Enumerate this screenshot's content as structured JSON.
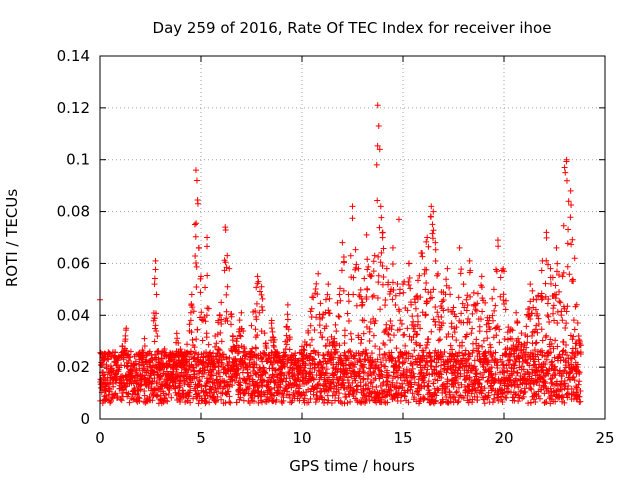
{
  "chart_data": {
    "type": "scatter",
    "title": "Day 259 of 2016, Rate Of TEC Index for receiver ihoe",
    "xlabel": "GPS time / hours",
    "ylabel": "ROTI / TECUs",
    "xlim": [
      0,
      25
    ],
    "ylim": [
      0,
      0.14
    ],
    "grid": true,
    "marker": "+",
    "x_ticks": [
      0,
      5,
      10,
      15,
      20,
      25
    ],
    "x_tick_labels": [
      "0",
      "5",
      "10",
      "15",
      "20",
      "25"
    ],
    "y_ticks": [
      0,
      0.02,
      0.04,
      0.06,
      0.08,
      0.1,
      0.12,
      0.14
    ],
    "y_tick_labels": [
      "0",
      "0.02",
      "0.04",
      "0.06",
      "0.08",
      "0.1",
      "0.12",
      "0.14"
    ],
    "series_color": "#ff0000",
    "series": [
      {
        "name": "ROTI",
        "x": [
          0.0,
          0.05,
          0.1,
          0.2,
          0.3,
          0.5,
          0.7,
          1.0,
          1.1,
          1.3,
          1.5,
          1.7,
          2.0,
          2.2,
          2.5,
          2.7,
          2.75,
          2.8,
          2.9,
          3.2,
          3.5,
          3.8,
          4.2,
          4.5,
          4.7,
          4.75,
          4.8,
          4.85,
          4.9,
          5.0,
          5.1,
          5.3,
          5.5,
          5.7,
          6.0,
          6.2,
          6.3,
          6.4,
          6.6,
          7.0,
          7.3,
          7.5,
          7.8,
          8.0,
          8.2,
          8.5,
          8.8,
          9.0,
          9.3,
          9.6,
          10.0,
          10.3,
          10.5,
          10.8,
          11.0,
          11.3,
          11.6,
          12.0,
          12.3,
          12.5,
          12.8,
          13.0,
          13.2,
          13.4,
          13.6,
          13.7,
          13.75,
          13.8,
          13.85,
          13.9,
          14.0,
          14.2,
          14.5,
          14.8,
          15.0,
          15.3,
          15.6,
          15.9,
          16.2,
          16.4,
          16.5,
          16.6,
          16.9,
          17.2,
          17.5,
          17.8,
          18.0,
          18.3,
          18.6,
          18.9,
          19.2,
          19.5,
          19.7,
          20.0,
          20.3,
          20.6,
          21.0,
          21.3,
          21.6,
          21.9,
          22.1,
          22.3,
          22.6,
          22.9,
          23.0,
          23.1,
          23.2,
          23.3,
          23.5,
          23.7
        ],
        "y": [
          0.046,
          0.012,
          0.018,
          0.025,
          0.009,
          0.016,
          0.022,
          0.014,
          0.028,
          0.035,
          0.019,
          0.011,
          0.024,
          0.031,
          0.017,
          0.052,
          0.061,
          0.048,
          0.021,
          0.027,
          0.015,
          0.033,
          0.022,
          0.041,
          0.075,
          0.096,
          0.092,
          0.083,
          0.066,
          0.055,
          0.038,
          0.07,
          0.024,
          0.032,
          0.045,
          0.074,
          0.063,
          0.058,
          0.028,
          0.041,
          0.019,
          0.036,
          0.055,
          0.051,
          0.029,
          0.038,
          0.022,
          0.018,
          0.044,
          0.013,
          0.028,
          0.034,
          0.047,
          0.056,
          0.039,
          0.052,
          0.031,
          0.068,
          0.048,
          0.082,
          0.058,
          0.045,
          0.071,
          0.055,
          0.063,
          0.098,
          0.121,
          0.113,
          0.104,
          0.082,
          0.072,
          0.058,
          0.066,
          0.077,
          0.052,
          0.06,
          0.045,
          0.064,
          0.07,
          0.082,
          0.08,
          0.068,
          0.049,
          0.058,
          0.043,
          0.066,
          0.052,
          0.061,
          0.044,
          0.055,
          0.038,
          0.05,
          0.069,
          0.057,
          0.034,
          0.041,
          0.029,
          0.052,
          0.046,
          0.061,
          0.072,
          0.058,
          0.066,
          0.055,
          0.097,
          0.1,
          0.084,
          0.088,
          0.062,
          0.032
        ]
      }
    ]
  }
}
